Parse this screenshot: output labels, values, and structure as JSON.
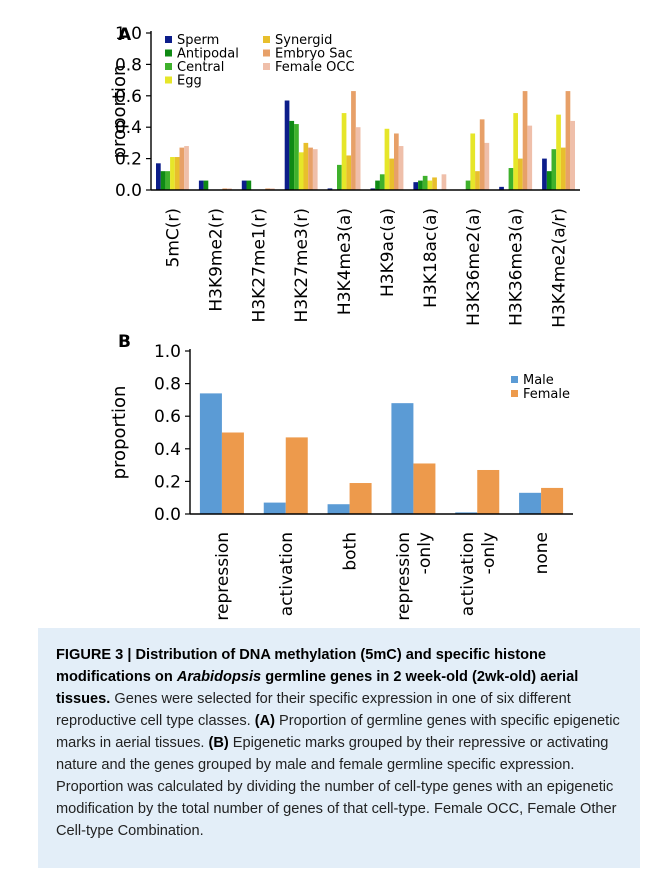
{
  "chart_data": [
    {
      "type": "bar",
      "panel": "A",
      "ylabel": "proportion",
      "ylim": [
        0,
        1.0
      ],
      "yticks": [
        "0.0",
        "0.2",
        "0.4",
        "0.6",
        "0.8",
        "1.0"
      ],
      "legend_position": "top-left",
      "categories": [
        "5mC(r)",
        "H3K9me2(r)",
        "H3K27me1(r)",
        "H3K27me3(r)",
        "H3K4me3(a)",
        "H3K9ac(a)",
        "H3K18ac(a)",
        "H3K36me2(a)",
        "H3K36me3(a)",
        "H3K4me2(a/r)"
      ],
      "series": [
        {
          "name": "Sperm",
          "color": "#0c1d8a",
          "values": [
            0.17,
            0.06,
            0.06,
            0.57,
            0.01,
            0.01,
            0.05,
            0.0,
            0.02,
            0.2
          ]
        },
        {
          "name": "Antipodal",
          "color": "#0f8a14",
          "values": [
            0.12,
            0.06,
            0.06,
            0.44,
            0.0,
            0.06,
            0.06,
            0.0,
            0.0,
            0.12
          ]
        },
        {
          "name": "Central",
          "color": "#3fb12c",
          "values": [
            0.12,
            0.0,
            0.0,
            0.42,
            0.16,
            0.1,
            0.09,
            0.06,
            0.14,
            0.26
          ]
        },
        {
          "name": "Egg",
          "color": "#e6e629",
          "values": [
            0.21,
            0.0,
            0.0,
            0.24,
            0.49,
            0.39,
            0.06,
            0.36,
            0.49,
            0.48
          ]
        },
        {
          "name": "Synergid",
          "color": "#e8bf2c",
          "values": [
            0.21,
            0.0,
            0.0,
            0.3,
            0.22,
            0.2,
            0.08,
            0.12,
            0.2,
            0.27
          ]
        },
        {
          "name": "Embryo Sac",
          "color": "#e7a068",
          "values": [
            0.27,
            0.01,
            0.01,
            0.27,
            0.63,
            0.36,
            0.0,
            0.45,
            0.63,
            0.63
          ]
        },
        {
          "name": "Female OCC",
          "color": "#efbfaa",
          "values": [
            0.28,
            0.01,
            0.01,
            0.26,
            0.4,
            0.28,
            0.1,
            0.3,
            0.41,
            0.44
          ]
        }
      ]
    },
    {
      "type": "bar",
      "panel": "B",
      "ylabel": "proportion",
      "ylim": [
        0,
        1.0
      ],
      "yticks": [
        "0.0",
        "0.2",
        "0.4",
        "0.6",
        "0.8",
        "1.0"
      ],
      "legend_position": "top-right",
      "categories": [
        "repression",
        "activation",
        "both",
        "repression\n-only",
        "activation\n-only",
        "none"
      ],
      "series": [
        {
          "name": "Male",
          "color": "#5b9bd5",
          "values": [
            0.74,
            0.07,
            0.06,
            0.68,
            0.01,
            0.13
          ]
        },
        {
          "name": "Female",
          "color": "#ed9a4c",
          "values": [
            0.5,
            0.47,
            0.19,
            0.31,
            0.27,
            0.16
          ]
        }
      ]
    }
  ],
  "caption": {
    "title_prefix": "FIGURE 3 | Distribution of DNA methylation (5mC) and specific histone modifications on ",
    "title_italic": "Arabidopsis",
    "title_suffix": " germline genes in 2 week-old (2wk-old) aerial tissues.",
    "sentence1": " Genes were selected for their specific expression in one of six different reproductive cell type classes. ",
    "ref_a": "(A)",
    "sentence2": " Proportion of germline genes with specific epigenetic marks in aerial tissues. ",
    "ref_b": "(B)",
    "sentence3": " Epigenetic marks grouped by their repressive or activating nature and the genes grouped by male and female germline specific expression. Proportion was calculated by dividing the number of cell-type genes with an epigenetic modification by the total number of genes of that cell-type. Female OCC, Female Other Cell-type Combination."
  }
}
